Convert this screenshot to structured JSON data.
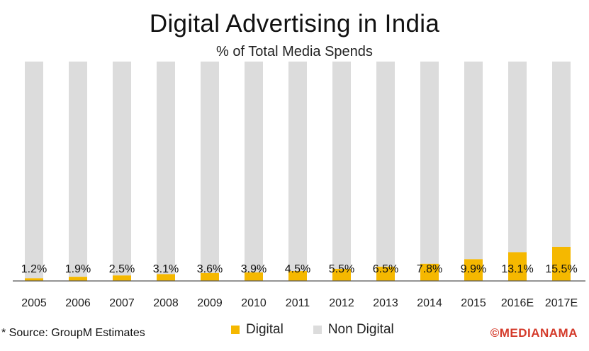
{
  "colors": {
    "digital": "#f5b800",
    "non_digital": "#dcdcdc",
    "axis": "#555555",
    "brand": "#d43a2a"
  },
  "chart_data": {
    "type": "bar",
    "stacked": true,
    "title": "Digital Advertising in India",
    "subtitle": "% of Total Media Spends",
    "categories": [
      "2005",
      "2006",
      "2007",
      "2008",
      "2009",
      "2010",
      "2011",
      "2012",
      "2013",
      "2014",
      "2015",
      "2016E",
      "2017E"
    ],
    "series": [
      {
        "name": "Digital",
        "values": [
          1.2,
          1.9,
          2.5,
          3.1,
          3.6,
          3.9,
          4.5,
          5.5,
          6.5,
          7.8,
          9.9,
          13.1,
          15.5
        ]
      },
      {
        "name": "Non Digital",
        "values": [
          98.8,
          98.1,
          97.5,
          96.9,
          96.4,
          96.1,
          95.5,
          94.5,
          93.5,
          92.2,
          90.1,
          86.9,
          84.5
        ]
      }
    ],
    "data_labels": [
      "1.2%",
      "1.9%",
      "2.5%",
      "3.1%",
      "3.6%",
      "3.9%",
      "4.5%",
      "5.5%",
      "6.5%",
      "7.8%",
      "9.9%",
      "13.1%",
      "15.5%"
    ],
    "ylim": [
      0,
      100
    ],
    "legend": [
      "Digital",
      "Non Digital"
    ],
    "legend_position": "bottom"
  },
  "footer": {
    "source": "* Source: GroupM Estimates",
    "brand": "©MEDIANAMA"
  }
}
